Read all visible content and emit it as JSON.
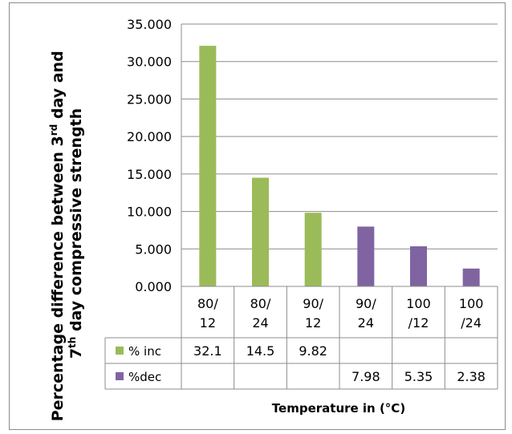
{
  "chart_data": {
    "type": "bar",
    "categories": [
      [
        "80/",
        "12"
      ],
      [
        "80/",
        "24"
      ],
      [
        "90/",
        "12"
      ],
      [
        "90/",
        "24"
      ],
      [
        "100",
        "/12"
      ],
      [
        "100",
        "/24"
      ]
    ],
    "series": [
      {
        "name": "% inc",
        "color": "#9bbb59",
        "values": [
          "32.1",
          "14.5",
          "9.82",
          null,
          null,
          null
        ]
      },
      {
        "name": "%dec",
        "color": "#8064a2",
        "values": [
          null,
          null,
          null,
          "7.98",
          "5.35",
          "2.38"
        ]
      }
    ],
    "ylim": [
      0,
      35
    ],
    "yticks": [
      "0.000",
      "5.000",
      "10.000",
      "15.000",
      "20.000",
      "25.000",
      "30.000",
      "35.000"
    ],
    "ylabel": {
      "line1": "Percentage difference between 3",
      "line1_sup": "rd",
      "line1_end": " day and",
      "line2_pre": "7",
      "line2_sup": "th",
      "line2_end": " day compressive strength"
    },
    "xlabel": "Temperature in (°C)",
    "grid": true,
    "legend": "data-table"
  }
}
